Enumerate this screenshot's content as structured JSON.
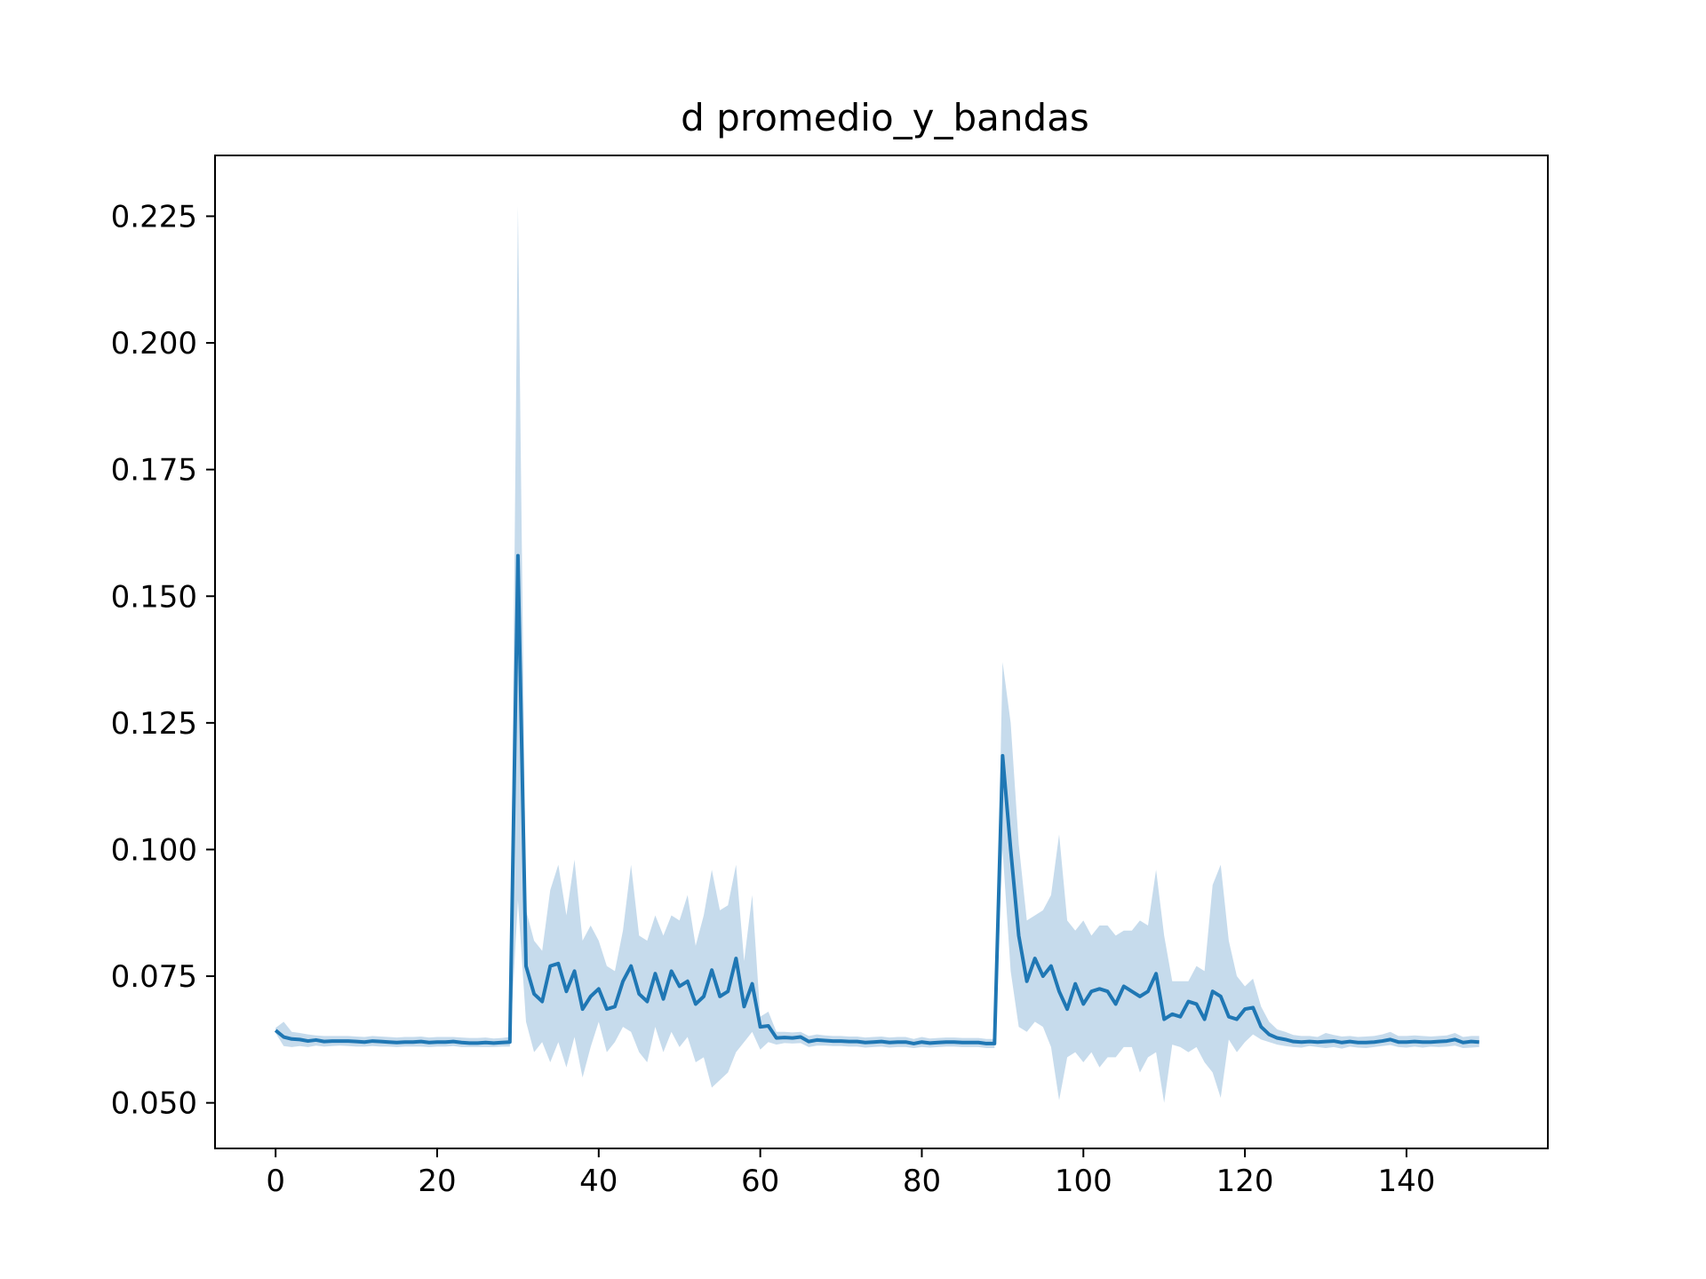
{
  "chart_data": {
    "type": "line",
    "title": "d promedio_y_bandas",
    "xlabel": "",
    "ylabel": "",
    "xlim": [
      -7.5,
      157.5
    ],
    "ylim": [
      0.041,
      0.237
    ],
    "x_ticks": [
      0,
      20,
      40,
      60,
      80,
      100,
      120,
      140
    ],
    "x_tick_labels": [
      "0",
      "20",
      "40",
      "60",
      "80",
      "100",
      "120",
      "140"
    ],
    "y_ticks": [
      0.05,
      0.075,
      0.1,
      0.125,
      0.15,
      0.175,
      0.2,
      0.225
    ],
    "y_tick_labels": [
      "0.050",
      "0.075",
      "0.100",
      "0.125",
      "0.150",
      "0.175",
      "0.200",
      "0.225"
    ],
    "grid": false,
    "legend": "none",
    "colors": {
      "line": "#1f77b4",
      "band": "#c6dbec",
      "axes": "#000000"
    },
    "series": [
      {
        "x": [
          0,
          1,
          2,
          3,
          4,
          5,
          6,
          7,
          8,
          9,
          10,
          11,
          12,
          13,
          14,
          15,
          16,
          17,
          18,
          19,
          20,
          21,
          22,
          23,
          24,
          25,
          26,
          27,
          28,
          29,
          30,
          31,
          32,
          33,
          34,
          35,
          36,
          37,
          38,
          39,
          40,
          41,
          42,
          43,
          44,
          45,
          46,
          47,
          48,
          49,
          50,
          51,
          52,
          53,
          54,
          55,
          56,
          57,
          58,
          59,
          60,
          61,
          62,
          63,
          64,
          65,
          66,
          67,
          68,
          69,
          70,
          71,
          72,
          73,
          74,
          75,
          76,
          77,
          78,
          79,
          80,
          81,
          82,
          83,
          84,
          85,
          86,
          87,
          88,
          89,
          90,
          91,
          92,
          93,
          94,
          95,
          96,
          97,
          98,
          99,
          100,
          101,
          102,
          103,
          104,
          105,
          106,
          107,
          108,
          109,
          110,
          111,
          112,
          113,
          114,
          115,
          116,
          117,
          118,
          119,
          120,
          121,
          122,
          123,
          124,
          125,
          126,
          127,
          128,
          129,
          130,
          131,
          132,
          133,
          134,
          135,
          136,
          137,
          138,
          139,
          140,
          141,
          142,
          143,
          144,
          145,
          146,
          147,
          148,
          149
        ],
        "mean": [
          0.0643,
          0.063,
          0.0626,
          0.0625,
          0.0622,
          0.0624,
          0.0621,
          0.0622,
          0.0622,
          0.0622,
          0.0621,
          0.062,
          0.0622,
          0.0621,
          0.062,
          0.0619,
          0.062,
          0.062,
          0.0621,
          0.0619,
          0.062,
          0.062,
          0.0621,
          0.0619,
          0.0618,
          0.0618,
          0.0619,
          0.0618,
          0.0619,
          0.062,
          0.158,
          0.077,
          0.0715,
          0.07,
          0.077,
          0.0775,
          0.072,
          0.076,
          0.0685,
          0.071,
          0.0725,
          0.0685,
          0.069,
          0.074,
          0.077,
          0.0715,
          0.07,
          0.0755,
          0.0705,
          0.076,
          0.073,
          0.074,
          0.0695,
          0.071,
          0.0762,
          0.071,
          0.072,
          0.0785,
          0.069,
          0.0735,
          0.065,
          0.0652,
          0.0628,
          0.0629,
          0.0628,
          0.063,
          0.0621,
          0.0624,
          0.0623,
          0.0622,
          0.0622,
          0.0621,
          0.0621,
          0.0619,
          0.062,
          0.0621,
          0.0619,
          0.062,
          0.062,
          0.0617,
          0.062,
          0.0618,
          0.0619,
          0.062,
          0.062,
          0.0619,
          0.0619,
          0.0619,
          0.0617,
          0.0617,
          0.1185,
          0.1,
          0.083,
          0.074,
          0.0785,
          0.075,
          0.077,
          0.072,
          0.0685,
          0.0735,
          0.0695,
          0.072,
          0.0725,
          0.072,
          0.0695,
          0.073,
          0.072,
          0.071,
          0.072,
          0.0755,
          0.0665,
          0.0675,
          0.067,
          0.07,
          0.0695,
          0.0665,
          0.072,
          0.071,
          0.067,
          0.0665,
          0.0685,
          0.0688,
          0.065,
          0.0635,
          0.0628,
          0.0625,
          0.0621,
          0.062,
          0.0621,
          0.062,
          0.0621,
          0.0622,
          0.0619,
          0.0621,
          0.0619,
          0.0619,
          0.062,
          0.0622,
          0.0625,
          0.062,
          0.062,
          0.0621,
          0.062,
          0.062,
          0.0621,
          0.0622,
          0.0625,
          0.0619,
          0.0621,
          0.062
        ],
        "lower": [
          0.0638,
          0.0612,
          0.061,
          0.0612,
          0.061,
          0.0613,
          0.0611,
          0.0612,
          0.0613,
          0.0612,
          0.0611,
          0.0611,
          0.0612,
          0.0611,
          0.0611,
          0.061,
          0.0611,
          0.0611,
          0.0611,
          0.061,
          0.0611,
          0.0611,
          0.0612,
          0.061,
          0.061,
          0.061,
          0.061,
          0.061,
          0.0611,
          0.0611,
          0.09,
          0.066,
          0.06,
          0.062,
          0.058,
          0.062,
          0.057,
          0.063,
          0.055,
          0.061,
          0.066,
          0.06,
          0.062,
          0.065,
          0.064,
          0.06,
          0.058,
          0.065,
          0.06,
          0.064,
          0.061,
          0.063,
          0.058,
          0.059,
          0.053,
          0.0545,
          0.056,
          0.06,
          0.062,
          0.064,
          0.0605,
          0.062,
          0.0615,
          0.0618,
          0.0617,
          0.0618,
          0.061,
          0.0613,
          0.0613,
          0.0612,
          0.0612,
          0.0611,
          0.0611,
          0.0609,
          0.061,
          0.0611,
          0.0609,
          0.061,
          0.061,
          0.0608,
          0.061,
          0.0609,
          0.061,
          0.0611,
          0.0611,
          0.061,
          0.061,
          0.061,
          0.0608,
          0.0608,
          0.1,
          0.076,
          0.065,
          0.064,
          0.066,
          0.065,
          0.061,
          0.0505,
          0.059,
          0.06,
          0.058,
          0.06,
          0.057,
          0.059,
          0.059,
          0.061,
          0.061,
          0.056,
          0.059,
          0.06,
          0.05,
          0.0615,
          0.061,
          0.06,
          0.061,
          0.058,
          0.056,
          0.051,
          0.0625,
          0.06,
          0.062,
          0.0635,
          0.0625,
          0.062,
          0.0615,
          0.0612,
          0.061,
          0.0609,
          0.0612,
          0.061,
          0.0608,
          0.061,
          0.0607,
          0.0611,
          0.0609,
          0.0608,
          0.061,
          0.0612,
          0.0614,
          0.061,
          0.0609,
          0.0611,
          0.0609,
          0.0611,
          0.061,
          0.0611,
          0.0613,
          0.0608,
          0.0609,
          0.061
        ],
        "upper": [
          0.0648,
          0.066,
          0.064,
          0.0638,
          0.0635,
          0.0633,
          0.0632,
          0.0632,
          0.0632,
          0.0632,
          0.0631,
          0.063,
          0.0632,
          0.0631,
          0.063,
          0.0629,
          0.063,
          0.063,
          0.0631,
          0.0629,
          0.063,
          0.063,
          0.063,
          0.0629,
          0.0628,
          0.0628,
          0.0629,
          0.0627,
          0.0628,
          0.063,
          0.227,
          0.088,
          0.082,
          0.08,
          0.092,
          0.097,
          0.087,
          0.098,
          0.082,
          0.085,
          0.082,
          0.077,
          0.076,
          0.084,
          0.097,
          0.083,
          0.082,
          0.087,
          0.083,
          0.087,
          0.086,
          0.091,
          0.081,
          0.087,
          0.096,
          0.088,
          0.089,
          0.097,
          0.078,
          0.091,
          0.067,
          0.068,
          0.064,
          0.064,
          0.0639,
          0.064,
          0.0632,
          0.0635,
          0.0633,
          0.0632,
          0.0632,
          0.0631,
          0.0631,
          0.0629,
          0.063,
          0.0631,
          0.0629,
          0.063,
          0.063,
          0.0626,
          0.063,
          0.0627,
          0.0628,
          0.0629,
          0.0629,
          0.0628,
          0.0628,
          0.0628,
          0.0626,
          0.0626,
          0.137,
          0.125,
          0.101,
          0.086,
          0.087,
          0.088,
          0.091,
          0.103,
          0.086,
          0.084,
          0.086,
          0.083,
          0.085,
          0.085,
          0.083,
          0.084,
          0.084,
          0.086,
          0.085,
          0.096,
          0.083,
          0.074,
          0.074,
          0.074,
          0.077,
          0.076,
          0.093,
          0.097,
          0.082,
          0.075,
          0.073,
          0.0745,
          0.069,
          0.066,
          0.0645,
          0.064,
          0.0634,
          0.0632,
          0.0632,
          0.063,
          0.0638,
          0.0634,
          0.0631,
          0.0632,
          0.063,
          0.0631,
          0.0632,
          0.0635,
          0.064,
          0.0632,
          0.0632,
          0.0633,
          0.0632,
          0.0631,
          0.0632,
          0.0633,
          0.0638,
          0.063,
          0.0632,
          0.0632
        ]
      }
    ]
  }
}
